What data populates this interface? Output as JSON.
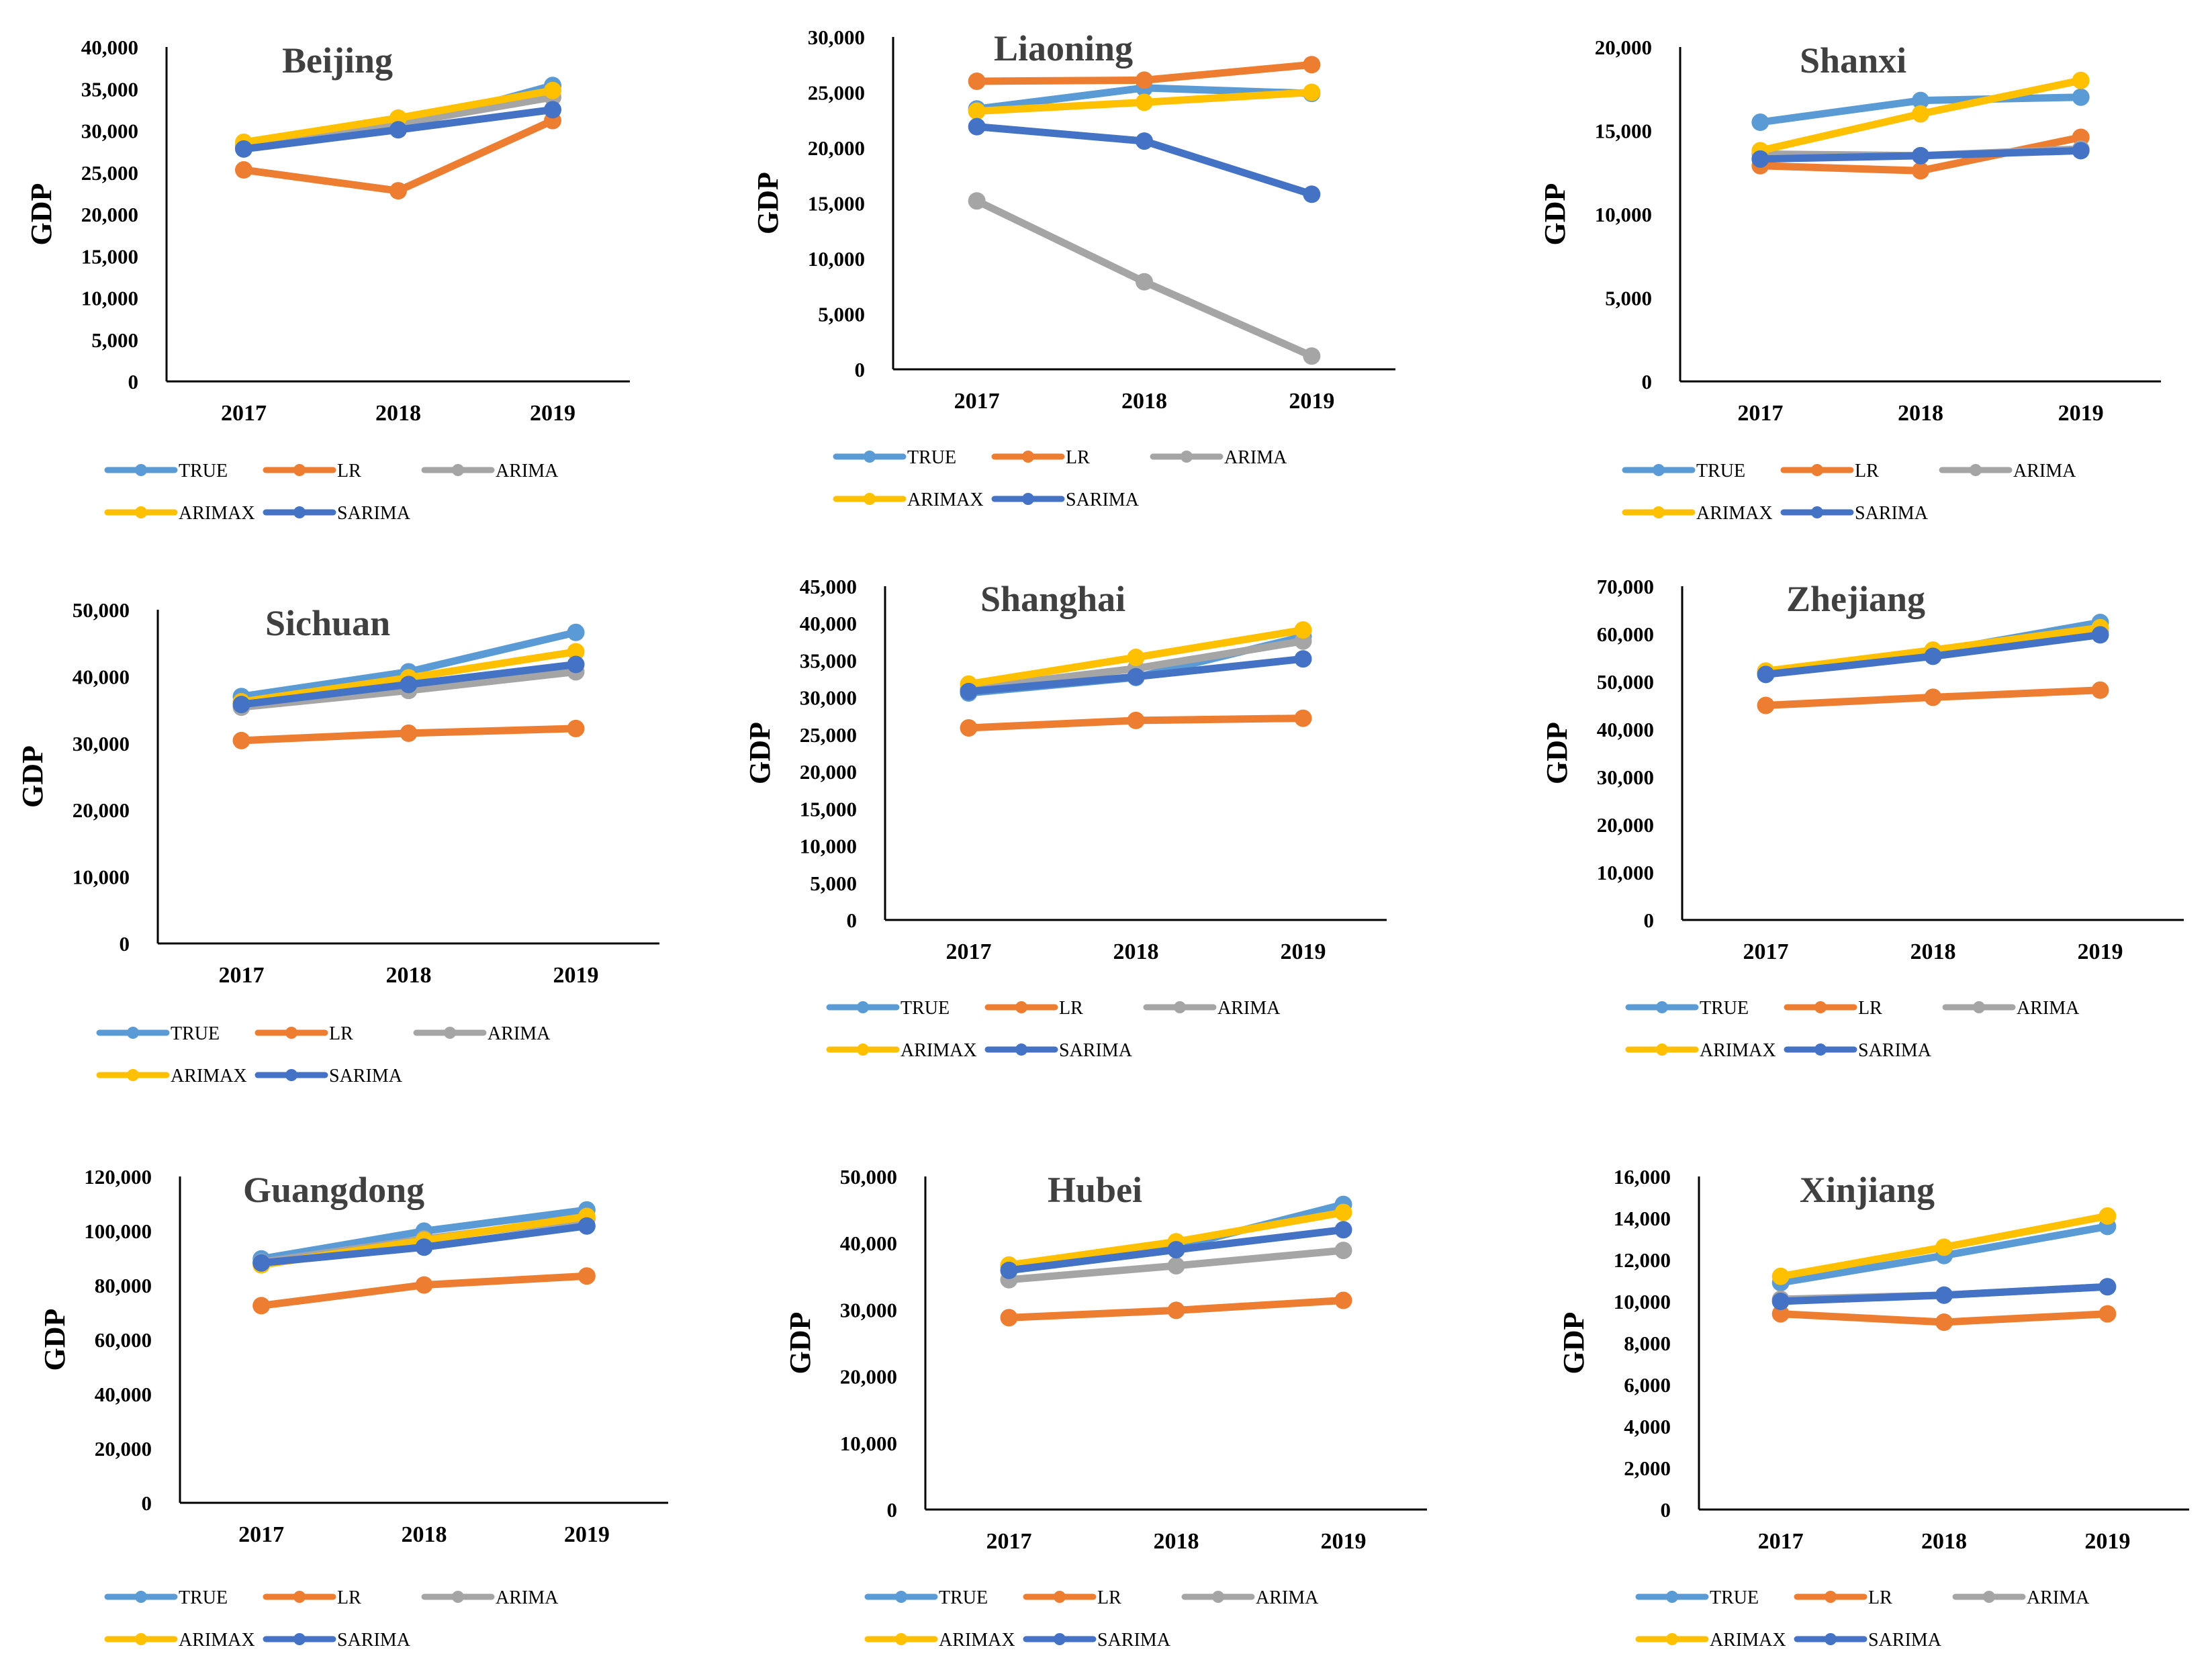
{
  "colors": {
    "TRUE": "#5b9bd5",
    "LR": "#ed7d31",
    "ARIMA": "#a5a5a5",
    "ARIMAX": "#ffc000",
    "SARIMA": "#4472c4",
    "axis": "#000000",
    "tick_text": "#000000",
    "title": "#404040"
  },
  "chart_data": [
    {
      "type": "line",
      "title": "Beijing",
      "ylabel": "GDP",
      "categories": [
        "2017",
        "2018",
        "2019"
      ],
      "ylim": [
        0,
        40000
      ],
      "yticks": [
        "0",
        "5,000",
        "10,000",
        "15,000",
        "20,000",
        "25,000",
        "30,000",
        "35,000",
        "40,000"
      ],
      "series": [
        {
          "name": "TRUE",
          "values": [
            28000,
            30300,
            35400
          ]
        },
        {
          "name": "LR",
          "values": [
            25300,
            22800,
            31200
          ]
        },
        {
          "name": "ARIMA",
          "values": [
            28200,
            30800,
            34000
          ]
        },
        {
          "name": "ARIMAX",
          "values": [
            28600,
            31500,
            34800
          ]
        },
        {
          "name": "SARIMA",
          "values": [
            27800,
            30100,
            32500
          ]
        }
      ]
    },
    {
      "type": "line",
      "title": "Liaoning",
      "ylabel": "GDP",
      "categories": [
        "2017",
        "2018",
        "2019"
      ],
      "ylim": [
        0,
        30000
      ],
      "yticks": [
        "0",
        "5,000",
        "10,000",
        "15,000",
        "20,000",
        "25,000",
        "30,000"
      ],
      "series": [
        {
          "name": "TRUE",
          "values": [
            23500,
            25400,
            24900
          ]
        },
        {
          "name": "LR",
          "values": [
            26000,
            26100,
            27500
          ]
        },
        {
          "name": "ARIMA",
          "values": [
            15200,
            7900,
            1200
          ]
        },
        {
          "name": "ARIMAX",
          "values": [
            23300,
            24100,
            25000
          ]
        },
        {
          "name": "SARIMA",
          "values": [
            21900,
            20600,
            15800
          ]
        }
      ]
    },
    {
      "type": "line",
      "title": "Shanxi",
      "ylabel": "GDP",
      "categories": [
        "2017",
        "2018",
        "2019"
      ],
      "ylim": [
        0,
        20000
      ],
      "yticks": [
        "0",
        "5,000",
        "10,000",
        "15,000",
        "20,000"
      ],
      "series": [
        {
          "name": "TRUE",
          "values": [
            15500,
            16800,
            17000
          ]
        },
        {
          "name": "LR",
          "values": [
            12900,
            12600,
            14600
          ]
        },
        {
          "name": "ARIMA",
          "values": [
            13600,
            13500,
            13900
          ]
        },
        {
          "name": "ARIMAX",
          "values": [
            13800,
            16000,
            18000
          ]
        },
        {
          "name": "SARIMA",
          "values": [
            13300,
            13500,
            13800
          ]
        }
      ]
    },
    {
      "type": "line",
      "title": "Sichuan",
      "ylabel": "GDP",
      "categories": [
        "2017",
        "2018",
        "2019"
      ],
      "ylim": [
        0,
        50000
      ],
      "yticks": [
        "0",
        "10,000",
        "20,000",
        "30,000",
        "40,000",
        "50,000"
      ],
      "series": [
        {
          "name": "TRUE",
          "values": [
            37000,
            40700,
            46600
          ]
        },
        {
          "name": "LR",
          "values": [
            30400,
            31500,
            32200
          ]
        },
        {
          "name": "ARIMA",
          "values": [
            35400,
            37900,
            40700
          ]
        },
        {
          "name": "ARIMAX",
          "values": [
            36200,
            39800,
            43700
          ]
        },
        {
          "name": "SARIMA",
          "values": [
            35800,
            38800,
            41800
          ]
        }
      ]
    },
    {
      "type": "line",
      "title": "Shanghai",
      "ylabel": "GDP",
      "categories": [
        "2017",
        "2018",
        "2019"
      ],
      "ylim": [
        0,
        45000
      ],
      "yticks": [
        "0",
        "5,000",
        "10,000",
        "15,000",
        "20,000",
        "25,000",
        "30,000",
        "35,000",
        "40,000",
        "45,000"
      ],
      "series": [
        {
          "name": "TRUE",
          "values": [
            30600,
            32700,
            38200
          ]
        },
        {
          "name": "LR",
          "values": [
            25900,
            26900,
            27200
          ]
        },
        {
          "name": "ARIMA",
          "values": [
            31200,
            33900,
            37600
          ]
        },
        {
          "name": "ARIMAX",
          "values": [
            31800,
            35400,
            39100
          ]
        },
        {
          "name": "SARIMA",
          "values": [
            30800,
            32800,
            35200
          ]
        }
      ]
    },
    {
      "type": "line",
      "title": "Zhejiang",
      "ylabel": "GDP",
      "categories": [
        "2017",
        "2018",
        "2019"
      ],
      "ylim": [
        0,
        70000
      ],
      "yticks": [
        "0",
        "10,000",
        "20,000",
        "30,000",
        "40,000",
        "50,000",
        "60,000",
        "70,000"
      ],
      "series": [
        {
          "name": "TRUE",
          "values": [
            51800,
            56200,
            62400
          ]
        },
        {
          "name": "LR",
          "values": [
            45000,
            46700,
            48200
          ]
        },
        {
          "name": "ARIMA",
          "values": [
            52000,
            56000,
            60500
          ]
        },
        {
          "name": "ARIMAX",
          "values": [
            52200,
            56600,
            61300
          ]
        },
        {
          "name": "SARIMA",
          "values": [
            51500,
            55300,
            59800
          ]
        }
      ]
    },
    {
      "type": "line",
      "title": "Guangdong",
      "ylabel": "GDP",
      "categories": [
        "2017",
        "2018",
        "2019"
      ],
      "ylim": [
        0,
        120000
      ],
      "yticks": [
        "0",
        "20,000",
        "40,000",
        "60,000",
        "80,000",
        "100,000",
        "120,000"
      ],
      "series": [
        {
          "name": "TRUE",
          "values": [
            89700,
            99900,
            107700
          ]
        },
        {
          "name": "LR",
          "values": [
            72500,
            80100,
            83400
          ]
        },
        {
          "name": "ARIMA",
          "values": [
            88500,
            97000,
            104500
          ]
        },
        {
          "name": "ARIMAX",
          "values": [
            87500,
            96500,
            105300
          ]
        },
        {
          "name": "SARIMA",
          "values": [
            88200,
            94000,
            101800
          ]
        }
      ]
    },
    {
      "type": "line",
      "title": "Hubei",
      "ylabel": "GDP",
      "categories": [
        "2017",
        "2018",
        "2019"
      ],
      "ylim": [
        0,
        50000
      ],
      "yticks": [
        "0",
        "10,000",
        "20,000",
        "30,000",
        "40,000",
        "50,000"
      ],
      "series": [
        {
          "name": "TRUE",
          "values": [
            36500,
            39400,
            45800
          ]
        },
        {
          "name": "LR",
          "values": [
            28800,
            29900,
            31400
          ]
        },
        {
          "name": "ARIMA",
          "values": [
            34500,
            36600,
            38900
          ]
        },
        {
          "name": "ARIMAX",
          "values": [
            36700,
            40200,
            44600
          ]
        },
        {
          "name": "SARIMA",
          "values": [
            35900,
            39000,
            42000
          ]
        }
      ]
    },
    {
      "type": "line",
      "title": "Xinjiang",
      "ylabel": "GDP",
      "categories": [
        "2017",
        "2018",
        "2019"
      ],
      "ylim": [
        0,
        16000
      ],
      "yticks": [
        "0",
        "2,000",
        "4,000",
        "6,000",
        "8,000",
        "10,000",
        "12,000",
        "14,000",
        "16,000"
      ],
      "series": [
        {
          "name": "TRUE",
          "values": [
            10900,
            12200,
            13600
          ]
        },
        {
          "name": "LR",
          "values": [
            9400,
            9000,
            9400
          ]
        },
        {
          "name": "ARIMA",
          "values": [
            10100,
            10300,
            10700
          ]
        },
        {
          "name": "ARIMAX",
          "values": [
            11200,
            12600,
            14100
          ]
        },
        {
          "name": "SARIMA",
          "values": [
            10000,
            10300,
            10700
          ]
        }
      ]
    }
  ]
}
